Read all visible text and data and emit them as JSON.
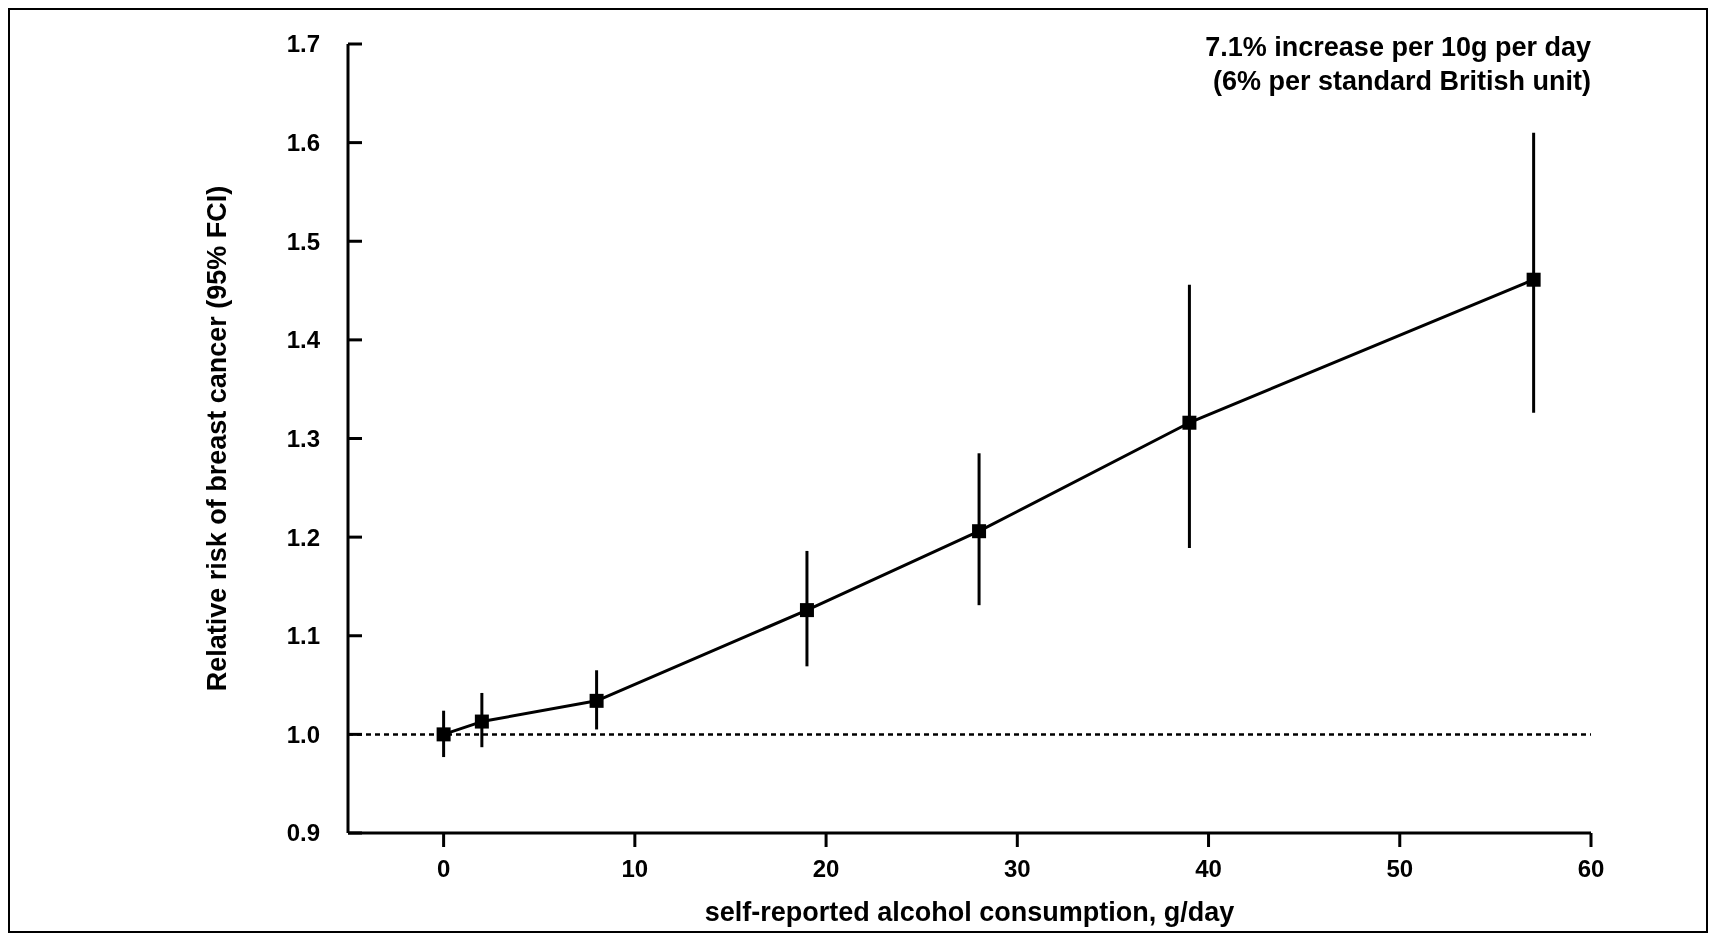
{
  "chart_data": {
    "type": "line",
    "xlabel": "self-reported alcohol consumption, g/day",
    "ylabel": "Relative risk of breast cancer (95% FCI)",
    "annotations": [
      "7.1% increase per 10g per day",
      "(6% per standard British unit)"
    ],
    "x": [
      0,
      2,
      8,
      19,
      28,
      39,
      57
    ],
    "series": [
      {
        "color": "#000000",
        "values": [
          1.0,
          1.013,
          1.034,
          1.126,
          1.206,
          1.316,
          1.461
        ],
        "errors": [
          [
            0.977,
            1.024
          ],
          [
            0.987,
            1.042
          ],
          [
            1.005,
            1.065
          ],
          [
            1.069,
            1.186
          ],
          [
            1.131,
            1.285
          ],
          [
            1.189,
            1.456
          ],
          [
            1.326,
            1.61
          ]
        ]
      }
    ],
    "xlim": [
      -5,
      60
    ],
    "xticks": [
      0,
      10,
      20,
      30,
      40,
      50,
      60
    ],
    "ylim": [
      0.9,
      1.7
    ],
    "yticks": [
      {
        "value": 0.9,
        "label": "0.9"
      },
      {
        "value": 1.0,
        "label": "1.0"
      },
      {
        "value": 1.1,
        "label": "1.1"
      },
      {
        "value": 1.2,
        "label": "1.2"
      },
      {
        "value": 1.3,
        "label": "1.3"
      },
      {
        "value": 1.4,
        "label": "1.4"
      },
      {
        "value": 1.5,
        "label": "1.5"
      },
      {
        "value": 1.6,
        "label": "1.6"
      },
      {
        "value": 1.7,
        "label": "1.7"
      }
    ],
    "ref_lines": [
      {
        "axis": "y",
        "value": 1.0,
        "line_style": "dotted",
        "color": "#000000"
      }
    ],
    "marker": "square",
    "line_style": "solid"
  }
}
